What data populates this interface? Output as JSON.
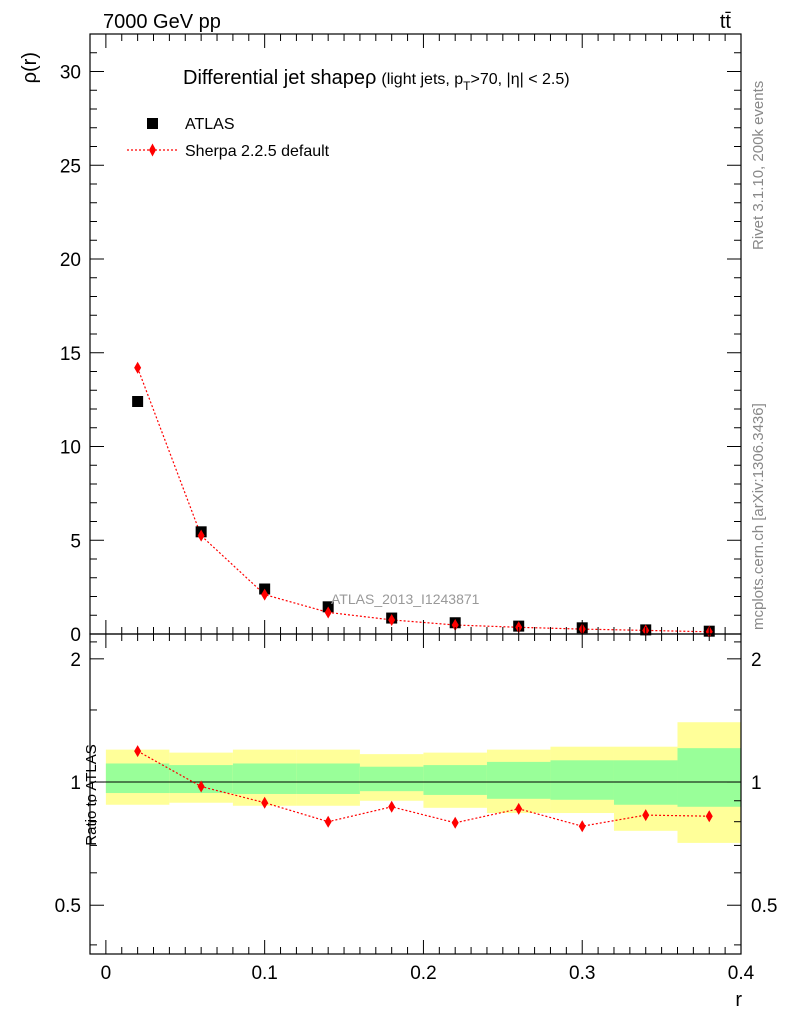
{
  "header": {
    "energy_label": "7000 GeV pp",
    "process_label": "tt̄"
  },
  "side_labels": {
    "rivet": "Rivet 3.1.10,  200k events",
    "mcplots": "mcplots.cern.ch [arXiv:1306.3436]"
  },
  "chart_data": [
    {
      "type": "scatter",
      "title_main": "Differential jet shape",
      "title_rho": "ρ",
      "title_sub": "(light jets, p",
      "title_sub_T": "T",
      "title_sub_rest": ">70, |η| < 2.5)",
      "ylabel": "ρ(r)",
      "xlim": [
        -0.01,
        0.4
      ],
      "ylim": [
        0,
        32
      ],
      "yticks": [
        0,
        5,
        10,
        15,
        20,
        25,
        30
      ],
      "watermark": "ATLAS_2013_I1243871",
      "legend_placement": "top-left",
      "series": [
        {
          "name": "ATLAS",
          "marker": "square",
          "color": "#000000",
          "x": [
            0.02,
            0.06,
            0.1,
            0.14,
            0.18,
            0.22,
            0.26,
            0.3,
            0.34,
            0.38
          ],
          "values": [
            12.4,
            5.45,
            2.4,
            1.45,
            0.85,
            0.6,
            0.42,
            0.33,
            0.22,
            0.15
          ]
        },
        {
          "name": "Sherpa 2.2.5 default",
          "marker": "diamond",
          "line": "dotted",
          "color": "#ff0000",
          "x": [
            0.02,
            0.06,
            0.1,
            0.14,
            0.18,
            0.22,
            0.26,
            0.3,
            0.34,
            0.38
          ],
          "values": [
            14.2,
            5.25,
            2.1,
            1.15,
            0.75,
            0.48,
            0.36,
            0.26,
            0.19,
            0.12
          ]
        }
      ]
    },
    {
      "type": "scatter",
      "ylabel": "Ratio to ATLAS",
      "xlabel": "r",
      "xlim": [
        -0.01,
        0.4
      ],
      "ylim": [
        0.38,
        2.3
      ],
      "xticks": [
        0,
        0.1,
        0.2,
        0.3,
        0.4
      ],
      "xtick_labels": [
        "0",
        "0.1",
        "0.2",
        "0.3",
        "0.4"
      ],
      "yticks": [
        0.5,
        1,
        2
      ],
      "ytick_labels": [
        "0.5",
        "1",
        "2"
      ],
      "bands": {
        "edges": [
          0,
          0.04,
          0.08,
          0.12,
          0.16,
          0.2,
          0.24,
          0.28,
          0.32,
          0.36,
          0.4
        ],
        "yellow_low": [
          0.88,
          0.89,
          0.875,
          0.875,
          0.9,
          0.865,
          0.84,
          0.84,
          0.76,
          0.71
        ],
        "yellow_high": [
          1.2,
          1.18,
          1.2,
          1.2,
          1.17,
          1.18,
          1.2,
          1.22,
          1.22,
          1.4
        ],
        "green_low": [
          0.94,
          0.94,
          0.935,
          0.935,
          0.95,
          0.93,
          0.91,
          0.905,
          0.88,
          0.87
        ],
        "green_high": [
          1.11,
          1.1,
          1.11,
          1.11,
          1.09,
          1.1,
          1.12,
          1.13,
          1.13,
          1.21
        ],
        "yellow_color": "#ffff99",
        "green_color": "#99ff99"
      },
      "series": [
        {
          "name": "Sherpa 2.2.5 default",
          "marker": "diamond",
          "line": "dotted",
          "color": "#ff0000",
          "x": [
            0.02,
            0.06,
            0.1,
            0.14,
            0.18,
            0.22,
            0.26,
            0.3,
            0.34,
            0.38
          ],
          "values": [
            1.19,
            0.975,
            0.89,
            0.8,
            0.87,
            0.795,
            0.86,
            0.78,
            0.83,
            0.825
          ]
        }
      ]
    }
  ]
}
